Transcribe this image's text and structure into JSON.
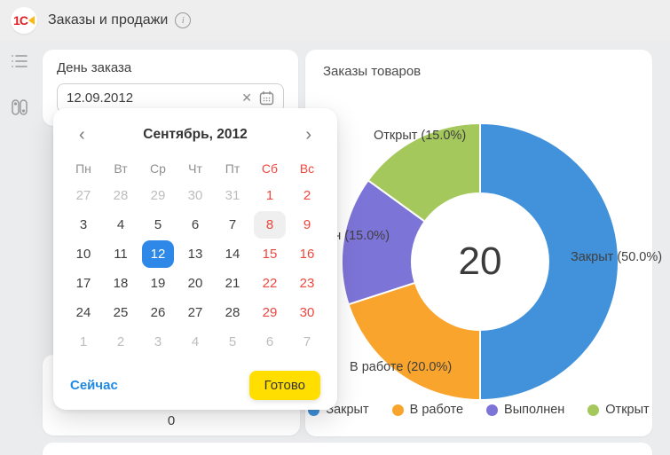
{
  "header": {
    "logo_text": "1С",
    "title": "Заказы и продажи",
    "info_glyph": "i"
  },
  "sidebar": {
    "items": [
      {
        "icon": "list-icon"
      },
      {
        "icon": "toggles-icon"
      }
    ]
  },
  "order_day": {
    "label": "День заказа",
    "value": "12.09.2012",
    "clear_glyph": "✕"
  },
  "metric": {
    "value": "0"
  },
  "calendar": {
    "title": "Сентябрь, 2012",
    "prev_glyph": "‹",
    "next_glyph": "›",
    "weekdays": [
      {
        "label": "Пн",
        "weekend": false
      },
      {
        "label": "Вт",
        "weekend": false
      },
      {
        "label": "Ср",
        "weekend": false
      },
      {
        "label": "Чт",
        "weekend": false
      },
      {
        "label": "Пт",
        "weekend": false
      },
      {
        "label": "Сб",
        "weekend": true
      },
      {
        "label": "Вс",
        "weekend": true
      }
    ],
    "weeks": [
      [
        {
          "d": "27",
          "type": "muted"
        },
        {
          "d": "28",
          "type": "muted"
        },
        {
          "d": "29",
          "type": "muted"
        },
        {
          "d": "30",
          "type": "muted"
        },
        {
          "d": "31",
          "type": "muted"
        },
        {
          "d": "1",
          "type": "weekend"
        },
        {
          "d": "2",
          "type": "weekend"
        }
      ],
      [
        {
          "d": "3",
          "type": "normal"
        },
        {
          "d": "4",
          "type": "normal"
        },
        {
          "d": "5",
          "type": "normal"
        },
        {
          "d": "6",
          "type": "normal"
        },
        {
          "d": "7",
          "type": "normal"
        },
        {
          "d": "8",
          "type": "today"
        },
        {
          "d": "9",
          "type": "weekend"
        }
      ],
      [
        {
          "d": "10",
          "type": "normal"
        },
        {
          "d": "11",
          "type": "normal"
        },
        {
          "d": "12",
          "type": "selected"
        },
        {
          "d": "13",
          "type": "normal"
        },
        {
          "d": "14",
          "type": "normal"
        },
        {
          "d": "15",
          "type": "weekend"
        },
        {
          "d": "16",
          "type": "weekend"
        }
      ],
      [
        {
          "d": "17",
          "type": "normal"
        },
        {
          "d": "18",
          "type": "normal"
        },
        {
          "d": "19",
          "type": "normal"
        },
        {
          "d": "20",
          "type": "normal"
        },
        {
          "d": "21",
          "type": "normal"
        },
        {
          "d": "22",
          "type": "weekend"
        },
        {
          "d": "23",
          "type": "weekend"
        }
      ],
      [
        {
          "d": "24",
          "type": "normal"
        },
        {
          "d": "25",
          "type": "normal"
        },
        {
          "d": "26",
          "type": "normal"
        },
        {
          "d": "27",
          "type": "normal"
        },
        {
          "d": "28",
          "type": "normal"
        },
        {
          "d": "29",
          "type": "weekend"
        },
        {
          "d": "30",
          "type": "weekend"
        }
      ],
      [
        {
          "d": "1",
          "type": "muted"
        },
        {
          "d": "2",
          "type": "muted"
        },
        {
          "d": "3",
          "type": "muted"
        },
        {
          "d": "4",
          "type": "muted"
        },
        {
          "d": "5",
          "type": "muted"
        },
        {
          "d": "6",
          "type": "muted"
        },
        {
          "d": "7",
          "type": "muted"
        }
      ]
    ],
    "now_label": "Сейчас",
    "done_label": "Готово"
  },
  "chart_panel": {
    "title": "Заказы товаров"
  },
  "chart_data": {
    "type": "pie",
    "title": "Заказы товаров",
    "donut": true,
    "center_total": "20",
    "series": [
      {
        "name": "Закрыт",
        "percent": 50.0,
        "color": "#4191db"
      },
      {
        "name": "В работе",
        "percent": 20.0,
        "color": "#f9a42c"
      },
      {
        "name": "Выполнен",
        "percent": 15.0,
        "color": "#7d74d8"
      },
      {
        "name": "Открыт",
        "percent": 15.0,
        "color": "#a5c85c"
      }
    ],
    "slice_labels": {
      "zakryt": "Закрыт (50.0%)",
      "v_rabote": "В работе (20.0%)",
      "vypolnen": "Выполнен (15.0%)",
      "otkryt": "Открыт (15.0%)"
    },
    "legend_position": "bottom",
    "start_angle_deg": -90,
    "direction": "clockwise"
  },
  "colors": {
    "accent_blue": "#2e88e8",
    "weekend_red": "#f1463d",
    "done_yellow": "#ffde00",
    "link_blue": "#1e88e5"
  }
}
